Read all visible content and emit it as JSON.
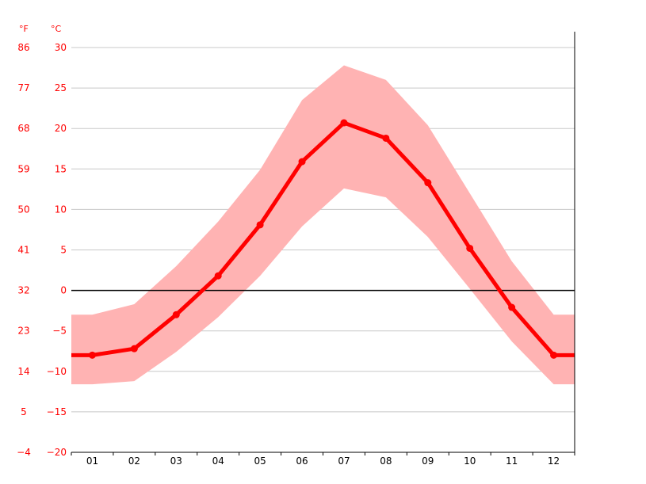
{
  "chart_data": {
    "type": "area",
    "units": {
      "fahrenheit": "°F",
      "celsius": "°C"
    },
    "categories": [
      "01",
      "02",
      "03",
      "04",
      "05",
      "06",
      "07",
      "08",
      "09",
      "10",
      "11",
      "12"
    ],
    "y_ticks_celsius": [
      "30",
      "25",
      "20",
      "15",
      "10",
      "5",
      "0",
      "−5",
      "−10",
      "−15",
      "−20"
    ],
    "y_ticks_fahrenheit": [
      "86",
      "77",
      "68",
      "59",
      "50",
      "41",
      "32",
      "23",
      "14",
      "5",
      "−4"
    ],
    "ylim": [
      -20,
      30
    ],
    "series": [
      {
        "role": "average",
        "values": [
          -8.0,
          -7.2,
          -3.0,
          1.8,
          8.1,
          15.9,
          20.7,
          18.8,
          13.3,
          5.2,
          -2.1,
          -8.0
        ]
      },
      {
        "role": "max",
        "values": [
          -3.0,
          -1.7,
          3.0,
          8.5,
          14.9,
          23.5,
          27.8,
          26.0,
          20.4,
          12.0,
          3.6,
          -3.0
        ]
      },
      {
        "role": "min",
        "values": [
          -11.6,
          -11.2,
          -7.6,
          -3.3,
          1.8,
          7.9,
          12.6,
          11.5,
          6.6,
          0.2,
          -6.3,
          -11.6
        ]
      }
    ],
    "colors": {
      "line": "#ff0000",
      "band": "#ffb3b3",
      "zero_line": "#000000",
      "grid": "#c8c8c8",
      "tick_labels": "#ff0000"
    },
    "grid": true
  }
}
